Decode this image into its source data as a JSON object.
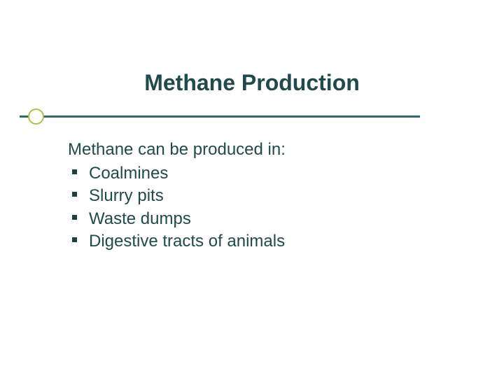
{
  "slide": {
    "background_color": "#ffffff",
    "title": {
      "text": "Methane Production",
      "color": "#214a4a",
      "fontsize": 32,
      "fontweight": "bold"
    },
    "divider": {
      "line_color": "#2a6b6b",
      "dot_border_color": "#a9c23f"
    },
    "intro": {
      "text": "Methane can be produced in:",
      "color": "#214a4a",
      "fontsize": 24
    },
    "bullets": {
      "marker_color": "#1f3f3f",
      "text_color": "#214a4a",
      "fontsize": 24,
      "items": [
        {
          "label": "Coalmines"
        },
        {
          "label": "Slurry pits"
        },
        {
          "label": "Waste dumps"
        },
        {
          "label": "Digestive tracts of animals"
        }
      ]
    }
  }
}
